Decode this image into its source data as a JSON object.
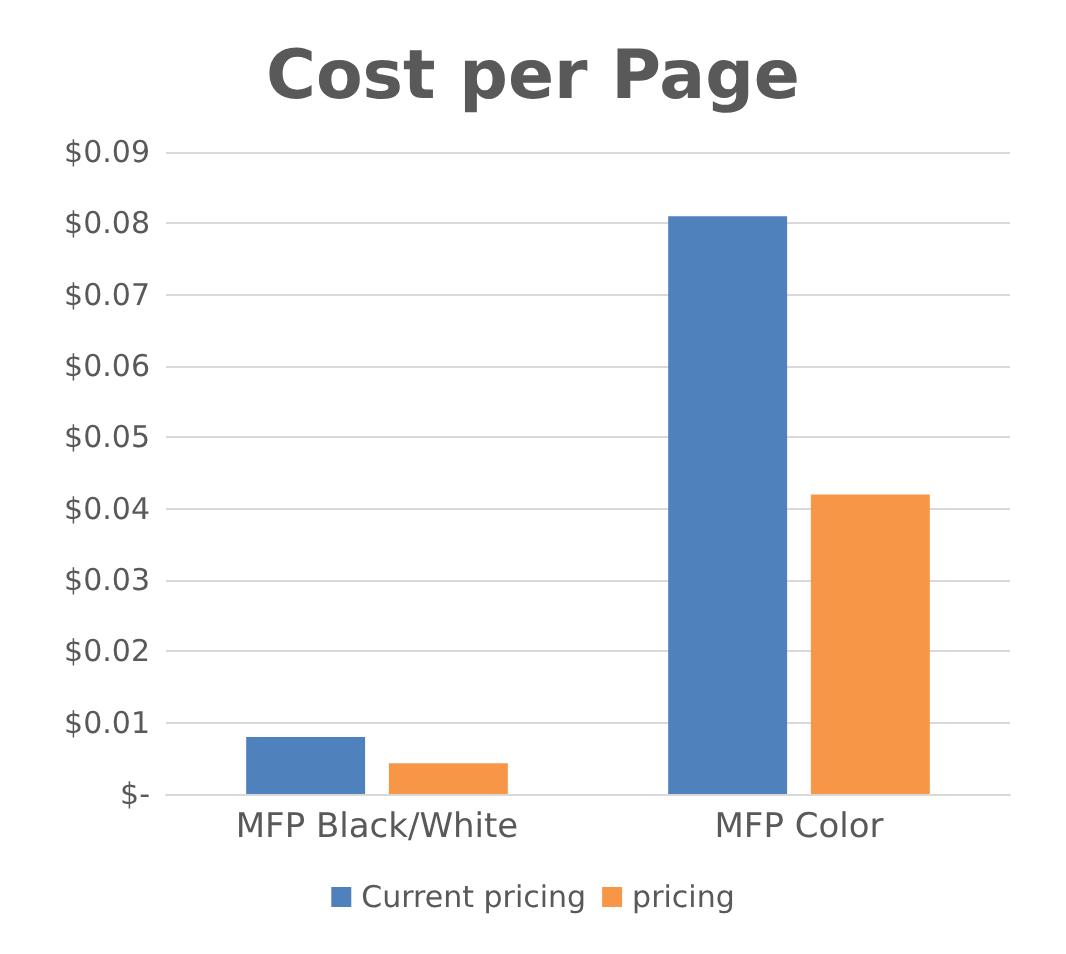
{
  "chart_data": {
    "type": "bar",
    "title": "Cost per Page",
    "categories": [
      "MFP Black/White",
      "MFP Color"
    ],
    "series": [
      {
        "name": "Current pricing",
        "color": "#4f81bd",
        "values": [
          0.008,
          0.081
        ]
      },
      {
        "name": "pricing",
        "color": "#f79646",
        "values": [
          0.0043,
          0.042
        ]
      }
    ],
    "ylim": [
      0,
      0.09
    ],
    "yticks": [
      {
        "value": 0,
        "label": "$-"
      },
      {
        "value": 0.01,
        "label": "$0.01"
      },
      {
        "value": 0.02,
        "label": "$0.02"
      },
      {
        "value": 0.03,
        "label": "$0.03"
      },
      {
        "value": 0.04,
        "label": "$0.04"
      },
      {
        "value": 0.05,
        "label": "$0.05"
      },
      {
        "value": 0.06,
        "label": "$0.06"
      },
      {
        "value": 0.07,
        "label": "$0.07"
      },
      {
        "value": 0.08,
        "label": "$0.08"
      },
      {
        "value": 0.09,
        "label": "$0.09"
      }
    ],
    "grid": "y",
    "legend": "bottom"
  }
}
